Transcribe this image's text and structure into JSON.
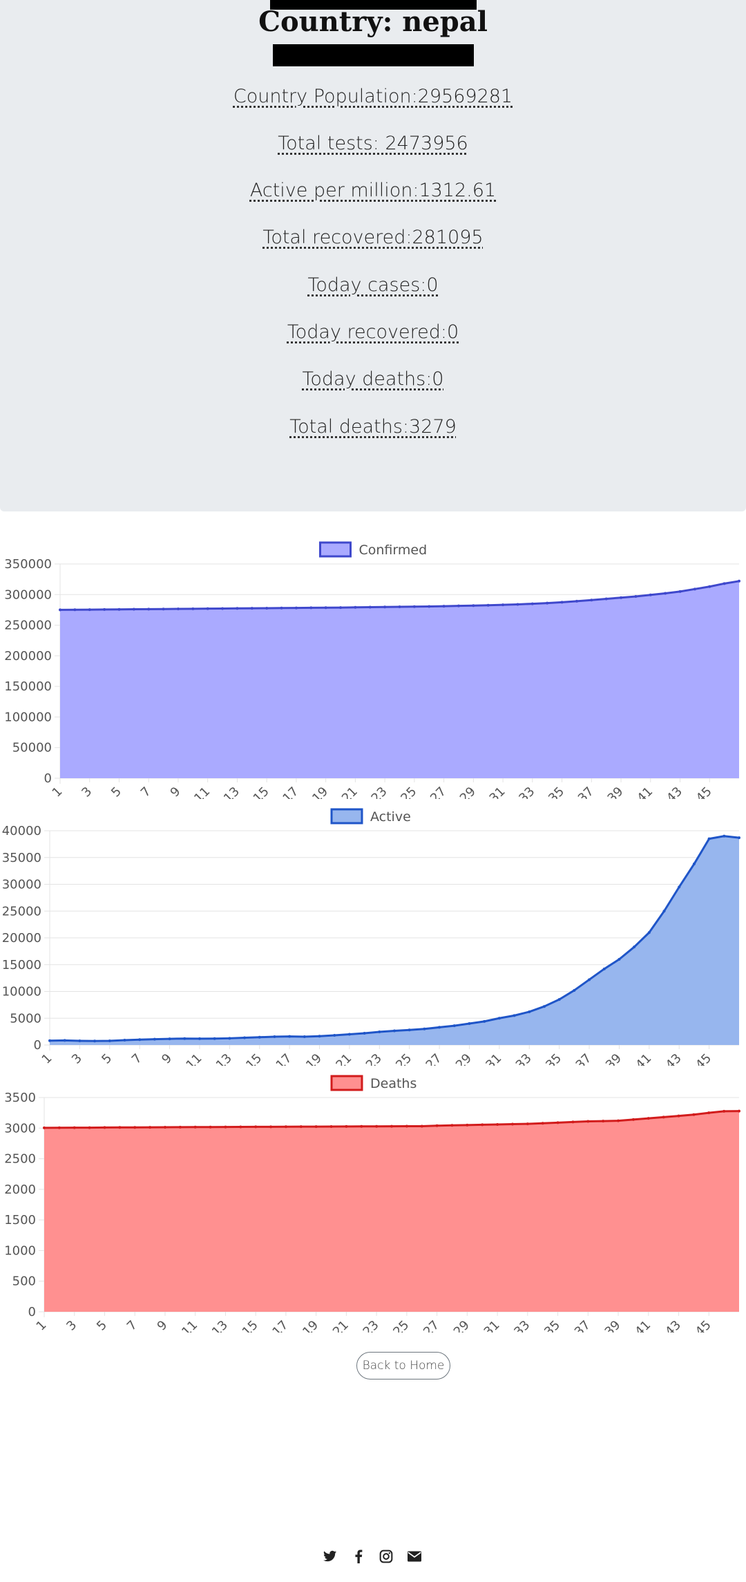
{
  "header": {
    "title": "Country: nepal"
  },
  "stats": [
    "Country Population:29569281",
    "Total tests: 2473956",
    "Active per million:1312.61",
    "Total recovered:281095",
    "Today cases:0",
    "Today recovered:0",
    "Today deaths:0",
    "Total deaths:3279"
  ],
  "chart_data": [
    {
      "type": "area",
      "legend": "Confirmed",
      "legend_position": "top",
      "color": "#3f48cc",
      "fill": "#aaaaff",
      "x_tick_labels": [
        "1",
        "3",
        "5",
        "7",
        "9",
        "11",
        "13",
        "15",
        "17",
        "19",
        "21",
        "23",
        "25",
        "27",
        "29",
        "31",
        "33",
        "35",
        "37",
        "39",
        "41",
        "43",
        "45"
      ],
      "y_tick_labels": [
        "0",
        "50000",
        "100000",
        "150000",
        "200000",
        "250000",
        "300000",
        "350000"
      ],
      "ylim": [
        0,
        350000
      ],
      "x": [
        1,
        2,
        3,
        4,
        5,
        6,
        7,
        8,
        9,
        10,
        11,
        12,
        13,
        14,
        15,
        16,
        17,
        18,
        19,
        20,
        21,
        22,
        23,
        24,
        25,
        26,
        27,
        28,
        29,
        30,
        31,
        32,
        33,
        34,
        35,
        36,
        37,
        38,
        39,
        40,
        41,
        42,
        43,
        44,
        45,
        46,
        47
      ],
      "values": [
        275000,
        275200,
        275400,
        275600,
        275800,
        276000,
        276200,
        276400,
        276600,
        276800,
        277000,
        277200,
        277400,
        277600,
        277800,
        278000,
        278200,
        278400,
        278600,
        278800,
        279100,
        279400,
        279700,
        280000,
        280300,
        280600,
        281000,
        281500,
        282000,
        282500,
        283200,
        284000,
        285000,
        286000,
        287500,
        289200,
        291000,
        293000,
        295000,
        297000,
        299500,
        302000,
        305000,
        309000,
        313000,
        318000,
        322000
      ]
    },
    {
      "type": "area",
      "legend": "Active",
      "legend_position": "top",
      "color": "#1f55c8",
      "fill": "#97b6ee",
      "x_tick_labels": [
        "1",
        "3",
        "5",
        "7",
        "9",
        "11",
        "13",
        "15",
        "17",
        "19",
        "21",
        "23",
        "25",
        "27",
        "29",
        "31",
        "33",
        "35",
        "37",
        "39",
        "41",
        "43",
        "45"
      ],
      "y_tick_labels": [
        "0",
        "5000",
        "10000",
        "15000",
        "20000",
        "25000",
        "30000",
        "35000",
        "40000"
      ],
      "ylim": [
        0,
        40000
      ],
      "x": [
        1,
        2,
        3,
        4,
        5,
        6,
        7,
        8,
        9,
        10,
        11,
        12,
        13,
        14,
        15,
        16,
        17,
        18,
        19,
        20,
        21,
        22,
        23,
        24,
        25,
        26,
        27,
        28,
        29,
        30,
        31,
        32,
        33,
        34,
        35,
        36,
        37,
        38,
        39,
        40,
        41,
        42,
        43,
        44,
        45,
        46,
        47
      ],
      "values": [
        800,
        850,
        780,
        750,
        770,
        900,
        1000,
        1080,
        1150,
        1200,
        1180,
        1200,
        1250,
        1350,
        1450,
        1550,
        1600,
        1550,
        1650,
        1800,
        2000,
        2200,
        2450,
        2650,
        2800,
        3000,
        3300,
        3600,
        4000,
        4400,
        5000,
        5500,
        6200,
        7200,
        8500,
        10200,
        12200,
        14200,
        16000,
        18300,
        21000,
        25000,
        29500,
        33800,
        38500,
        39000,
        38700
      ]
    },
    {
      "type": "area",
      "legend": "Deaths",
      "legend_position": "top",
      "color": "#d21c1c",
      "fill": "#ff9090",
      "x_tick_labels": [
        "1",
        "3",
        "5",
        "7",
        "9",
        "11",
        "13",
        "15",
        "17",
        "19",
        "21",
        "23",
        "25",
        "27",
        "29",
        "31",
        "33",
        "35",
        "37",
        "39",
        "41",
        "43",
        "45"
      ],
      "y_tick_labels": [
        "0",
        "500",
        "1000",
        "1500",
        "2000",
        "2500",
        "3000",
        "3500"
      ],
      "ylim": [
        0,
        3500
      ],
      "x": [
        1,
        2,
        3,
        4,
        5,
        6,
        7,
        8,
        9,
        10,
        11,
        12,
        13,
        14,
        15,
        16,
        17,
        18,
        19,
        20,
        21,
        22,
        23,
        24,
        25,
        26,
        27,
        28,
        29,
        30,
        31,
        32,
        33,
        34,
        35,
        36,
        37,
        38,
        39,
        40,
        41,
        42,
        43,
        44,
        45,
        46,
        47
      ],
      "values": [
        3005,
        3006,
        3007,
        3008,
        3010,
        3011,
        3012,
        3013,
        3014,
        3016,
        3017,
        3018,
        3019,
        3020,
        3021,
        3022,
        3023,
        3024,
        3025,
        3026,
        3027,
        3028,
        3029,
        3030,
        3031,
        3032,
        3040,
        3045,
        3050,
        3055,
        3060,
        3065,
        3070,
        3080,
        3090,
        3100,
        3110,
        3115,
        3120,
        3140,
        3160,
        3180,
        3200,
        3220,
        3250,
        3275,
        3279
      ]
    }
  ],
  "back_button": "Back to Home",
  "social_icons": [
    "twitter-icon",
    "facebook-icon",
    "instagram-icon",
    "envelope-icon"
  ]
}
